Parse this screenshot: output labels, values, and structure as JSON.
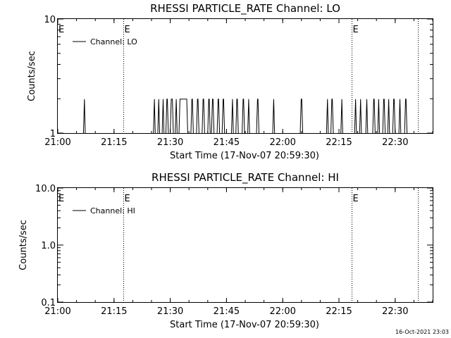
{
  "footer_stamp": "16-Oct-2021 23:03",
  "chart_data": [
    {
      "type": "line",
      "title": "RHESSI PARTICLE_RATE Channel: LO",
      "xlabel": "Start Time (17-Nov-07 20:59:30)",
      "ylabel": "Counts/sec",
      "y_scale": "log",
      "xlim": [
        "21:00",
        "22:40"
      ],
      "ylim": [
        1,
        10
      ],
      "x_ticks": [
        "21:00",
        "21:15",
        "21:30",
        "21:45",
        "22:00",
        "22:15",
        "22:30"
      ],
      "y_ticks": [
        "1",
        "10"
      ],
      "legend": {
        "label": "Channel: LO",
        "position": "top-left"
      },
      "event_lines": [
        {
          "time": "21:17:30",
          "label": "E"
        },
        {
          "time": "22:18:20",
          "label": "E"
        },
        {
          "time": "22:36:00",
          "label": ""
        }
      ],
      "event_markers_left": "E",
      "series": [
        {
          "name": "Channel: LO",
          "baseline": 1,
          "peak": 2,
          "pulses": [
            [
              "21:06:50",
              "21:07:20"
            ],
            [
              "21:25:30",
              "21:26:00"
            ],
            [
              "21:26:40",
              "21:27:10"
            ],
            [
              "21:27:50",
              "21:28:20"
            ],
            [
              "21:28:50",
              "21:29:30"
            ],
            [
              "21:30:00",
              "21:30:50"
            ],
            [
              "21:31:20",
              "21:31:50"
            ],
            [
              "21:32:20",
              "21:34:40"
            ],
            [
              "21:35:30",
              "21:36:10"
            ],
            [
              "21:37:00",
              "21:37:40"
            ],
            [
              "21:38:30",
              "21:39:10"
            ],
            [
              "21:40:00",
              "21:40:40"
            ],
            [
              "21:41:00",
              "21:41:40"
            ],
            [
              "21:42:30",
              "21:43:10"
            ],
            [
              "21:43:50",
              "21:44:30"
            ],
            [
              "21:46:20",
              "21:46:50"
            ],
            [
              "21:47:30",
              "21:48:10"
            ],
            [
              "21:49:10",
              "21:49:50"
            ],
            [
              "21:50:40",
              "21:51:10"
            ],
            [
              "21:53:00",
              "21:53:40"
            ],
            [
              "21:57:20",
              "21:57:50"
            ],
            [
              "22:04:40",
              "22:05:20"
            ],
            [
              "22:11:40",
              "22:12:10"
            ],
            [
              "22:12:50",
              "22:13:30"
            ],
            [
              "22:15:30",
              "22:16:00"
            ],
            [
              "22:19:10",
              "22:19:40"
            ],
            [
              "22:20:30",
              "22:21:00"
            ],
            [
              "22:22:10",
              "22:22:40"
            ],
            [
              "22:24:00",
              "22:24:40"
            ],
            [
              "22:25:20",
              "22:25:50"
            ],
            [
              "22:26:40",
              "22:27:20"
            ],
            [
              "22:28:00",
              "22:28:30"
            ],
            [
              "22:29:20",
              "22:30:00"
            ],
            [
              "22:31:00",
              "22:31:30"
            ],
            [
              "22:32:30",
              "22:33:10"
            ]
          ]
        }
      ]
    },
    {
      "type": "line",
      "title": "RHESSI PARTICLE_RATE Channel: HI",
      "xlabel": "Start Time (17-Nov-07 20:59:30)",
      "ylabel": "Counts/sec",
      "y_scale": "log",
      "xlim": [
        "21:00",
        "22:40"
      ],
      "ylim": [
        0.1,
        10
      ],
      "x_ticks": [
        "21:00",
        "21:15",
        "21:30",
        "21:45",
        "22:00",
        "22:15",
        "22:30"
      ],
      "y_ticks": [
        "0.1",
        "1.0",
        "10.0"
      ],
      "legend": {
        "label": "Channel: HI",
        "position": "top-left"
      },
      "event_lines": [
        {
          "time": "21:17:30",
          "label": "E"
        },
        {
          "time": "22:18:20",
          "label": "E"
        },
        {
          "time": "22:36:00",
          "label": ""
        }
      ],
      "event_markers_left": "E",
      "series": [
        {
          "name": "Channel: HI",
          "baseline": null,
          "peak": null,
          "pulses": []
        }
      ]
    }
  ]
}
